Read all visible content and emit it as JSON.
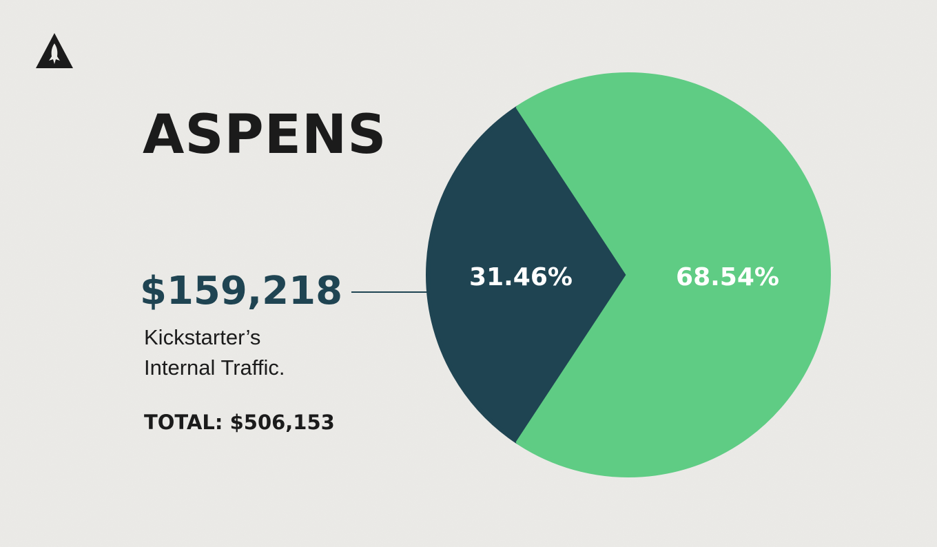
{
  "brand": {
    "logo_icon": "arrowhead-logo-icon"
  },
  "title": "ASPENS",
  "callout": {
    "amount": "$159,218",
    "description_line1": "Kickstarter’s",
    "description_line2": "Internal Traffic.",
    "total": "TOTAL: $506,153"
  },
  "colors": {
    "background": "#ecebe8",
    "dark_slice": "#1f4452",
    "green_slice": "#5fcc84",
    "text": "#1b1b1b"
  },
  "chart_data": {
    "type": "pie",
    "title": "ASPENS",
    "slices": [
      {
        "value": 31.46,
        "label": "31.46%",
        "color": "#1f4452"
      },
      {
        "value": 68.54,
        "label": "68.54%",
        "color": "#5fcc84"
      }
    ]
  }
}
